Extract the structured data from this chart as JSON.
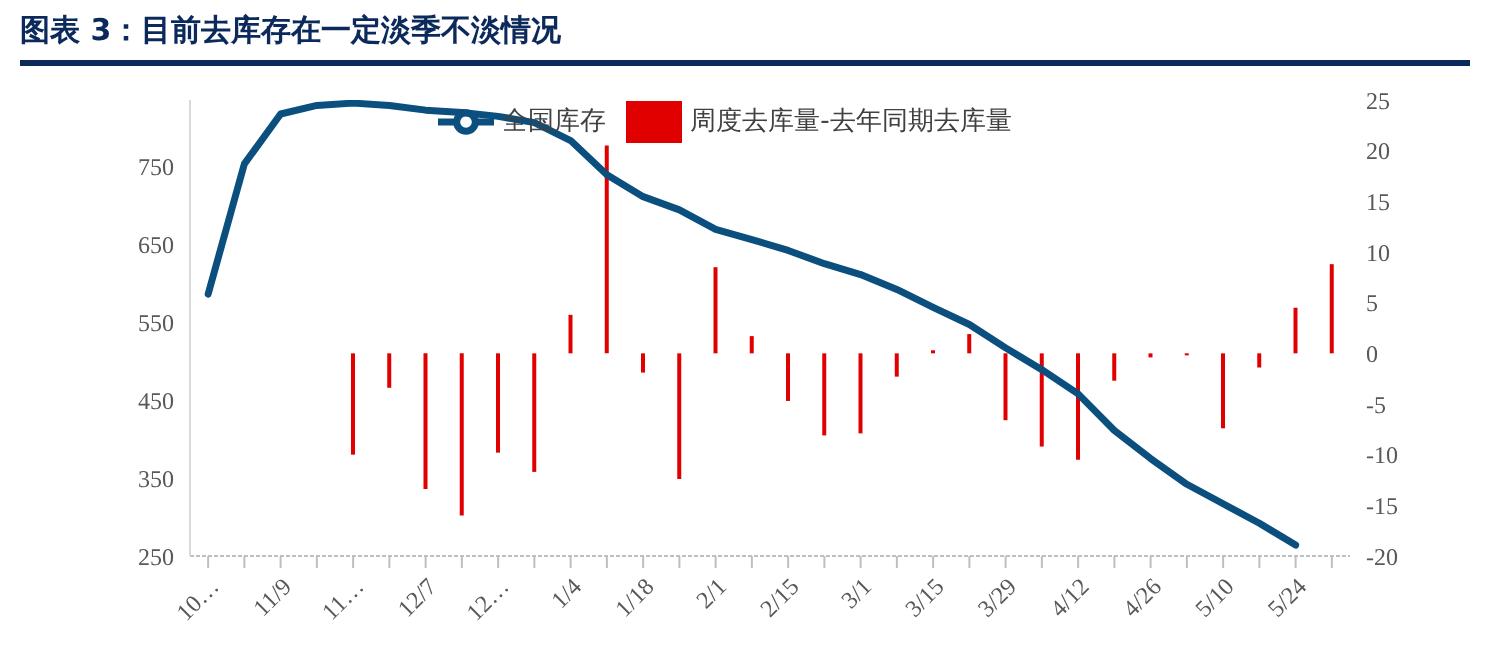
{
  "chart_data": {
    "type": "bar",
    "title": "图表 3：目前去库存在一定淡季不淡情况",
    "categories": [
      "10…",
      null,
      "11/9",
      null,
      "11…",
      null,
      "12/7",
      null,
      "12…",
      null,
      "1/4",
      null,
      "1/18",
      null,
      "2/1",
      null,
      "2/15",
      null,
      "3/1",
      null,
      "3/15",
      null,
      "3/29",
      null,
      "4/12",
      null,
      "4/26",
      null,
      "5/10",
      null,
      "5/24",
      null
    ],
    "series": [
      {
        "name": "周度去库量-去年同期去库量",
        "axis": "y2",
        "color": "#e00000",
        "values": [
          null,
          null,
          null,
          null,
          -10.0,
          -3.4,
          -13.4,
          -16.0,
          -9.8,
          -11.7,
          3.8,
          20.5,
          -1.9,
          -12.4,
          8.5,
          1.7,
          -4.7,
          -8.1,
          -7.9,
          -2.3,
          0.3,
          1.9,
          -6.6,
          -9.2,
          -10.5,
          -2.7,
          -0.4,
          -0.2,
          -7.4,
          -1.4,
          4.5,
          8.8
        ]
      },
      {
        "name": "全国库存",
        "type": "line",
        "axis": "y",
        "color": "#0b4f7f",
        "values": [
          586,
          753,
          817,
          828,
          831,
          828,
          822,
          819,
          814,
          806,
          783,
          739,
          711,
          694,
          669,
          656,
          642,
          625,
          611,
          592,
          569,
          547,
          517,
          489,
          458,
          411,
          375,
          342,
          317,
          292,
          264,
          null
        ]
      }
    ],
    "ylim": [
      250,
      835
    ],
    "yticks": [
      250,
      350,
      450,
      550,
      650,
      750
    ],
    "y2lim": [
      -20,
      25
    ],
    "y2ticks": [
      -20,
      -15,
      -10,
      -5,
      0,
      5,
      10,
      15,
      20,
      25
    ],
    "grid": false,
    "legend": "top",
    "marker": "none",
    "line_style": "solid"
  }
}
